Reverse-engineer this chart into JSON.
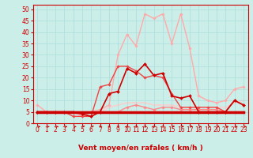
{
  "xlabel": "Vent moyen/en rafales ( km/h )",
  "bg_color": "#cceee8",
  "grid_color": "#aadddd",
  "x_ticks": [
    0,
    1,
    2,
    3,
    4,
    5,
    6,
    7,
    8,
    9,
    10,
    11,
    12,
    13,
    14,
    15,
    16,
    17,
    18,
    19,
    20,
    21,
    22,
    23
  ],
  "ylim": [
    0,
    52
  ],
  "xlim": [
    -0.5,
    23.5
  ],
  "series": [
    {
      "y": [
        5,
        5,
        5,
        5,
        5,
        4,
        3,
        5,
        13,
        14,
        24,
        22,
        26,
        21,
        22,
        12,
        11,
        12,
        5,
        5,
        5,
        5,
        10,
        8
      ],
      "color": "#cc0000",
      "lw": 1.2,
      "marker": "D",
      "ms": 2.0,
      "zorder": 5
    },
    {
      "y": [
        5,
        5,
        5,
        5,
        5,
        5,
        5,
        5,
        5,
        5,
        5,
        5,
        5,
        5,
        5,
        5,
        5,
        5,
        5,
        5,
        5,
        5,
        5,
        5
      ],
      "color": "#cc0000",
      "lw": 2.5,
      "marker": null,
      "ms": 0,
      "zorder": 4
    },
    {
      "y": [
        5,
        5,
        5,
        5,
        3,
        3,
        3,
        16,
        17,
        25,
        25,
        23,
        20,
        21,
        20,
        13,
        7,
        7,
        7,
        7,
        7,
        5,
        10,
        8
      ],
      "color": "#ee4444",
      "lw": 1.0,
      "marker": "D",
      "ms": 1.8,
      "zorder": 3
    },
    {
      "y": [
        8,
        5,
        5,
        5,
        5,
        3,
        5,
        6,
        8,
        30,
        39,
        34,
        48,
        46,
        48,
        35,
        48,
        33,
        12,
        10,
        9,
        10,
        15,
        16
      ],
      "color": "#ffaaaa",
      "lw": 1.0,
      "marker": "D",
      "ms": 1.8,
      "zorder": 2
    },
    {
      "y": [
        5,
        5,
        5,
        5,
        5,
        5,
        5,
        5,
        5,
        5,
        5,
        5,
        5,
        5,
        5,
        5,
        5,
        5,
        5,
        5,
        5,
        5,
        5,
        5
      ],
      "color": "#ffbbbb",
      "lw": 1.5,
      "marker": null,
      "ms": 0,
      "zorder": 1
    },
    {
      "y": [
        5,
        5,
        5,
        5,
        5,
        5,
        5,
        5,
        5,
        5,
        7,
        8,
        7,
        6,
        7,
        7,
        6,
        6,
        6,
        6,
        6,
        5,
        5,
        5
      ],
      "color": "#ff8888",
      "lw": 1.0,
      "marker": "D",
      "ms": 1.8,
      "zorder": 2
    },
    {
      "y": [
        5,
        5,
        5,
        5,
        5,
        5,
        5,
        5,
        7,
        8,
        9,
        9,
        9,
        8,
        8,
        8,
        7,
        7,
        7,
        7,
        7,
        7,
        9,
        10
      ],
      "color": "#ffcccc",
      "lw": 1.0,
      "marker": "D",
      "ms": 1.5,
      "zorder": 1
    }
  ],
  "tick_fontsize": 5.5,
  "label_fontsize": 6.5,
  "yticks": [
    0,
    5,
    10,
    15,
    20,
    25,
    30,
    35,
    40,
    45,
    50
  ]
}
